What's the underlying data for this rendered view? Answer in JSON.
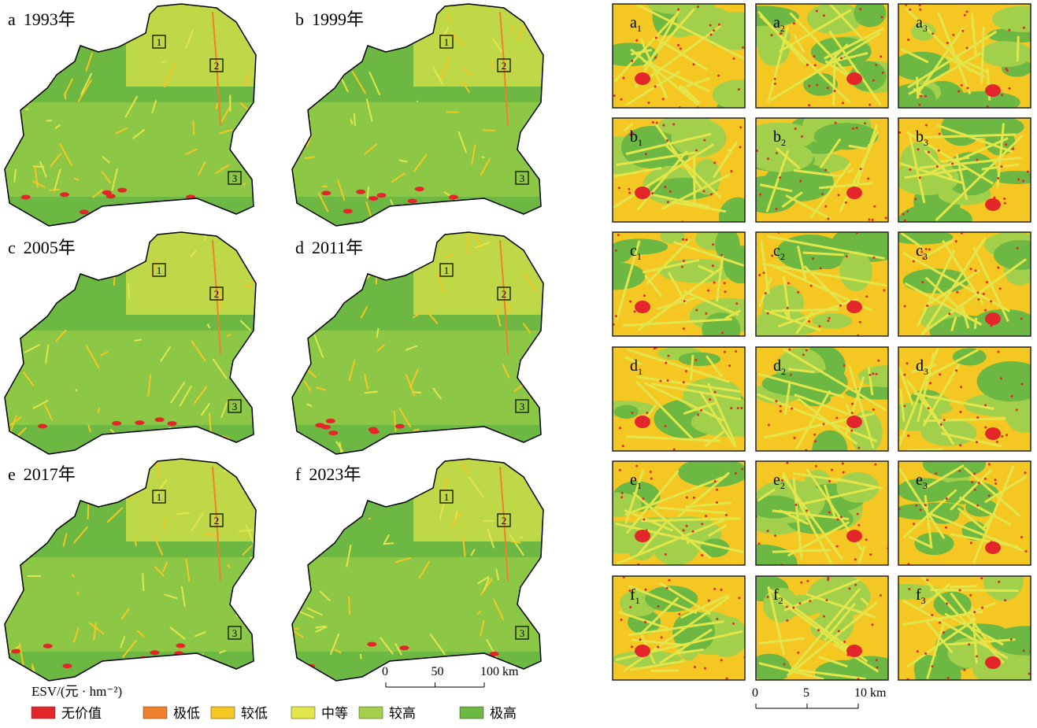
{
  "maps": [
    {
      "letter": "a",
      "year": "1993年"
    },
    {
      "letter": "b",
      "year": "1999年"
    },
    {
      "letter": "c",
      "year": "2005年"
    },
    {
      "letter": "d",
      "year": "2011年"
    },
    {
      "letter": "e",
      "year": "2017年"
    },
    {
      "letter": "f",
      "year": "2023年"
    }
  ],
  "box_labels": [
    "1",
    "2",
    "3"
  ],
  "scale_bars": [
    {
      "ticks": [
        "0",
        "50",
        "100 km"
      ]
    },
    {
      "ticks": [
        "0",
        "5",
        "10 km"
      ]
    }
  ],
  "legend": {
    "title": "ESV/(元 · hm⁻²)",
    "items": [
      {
        "label": "无价值",
        "color": "#e3262a"
      },
      {
        "label": "极低",
        "color": "#f0802c"
      },
      {
        "label": "较低",
        "color": "#f5c723"
      },
      {
        "label": "中等",
        "color": "#e3e64a"
      },
      {
        "label": "较高",
        "color": "#a3d04a"
      },
      {
        "label": "极高",
        "color": "#6db843"
      }
    ]
  },
  "insets": {
    "rows": [
      "a",
      "b",
      "c",
      "d",
      "e",
      "f"
    ],
    "subs": [
      "1",
      "2",
      "3"
    ]
  }
}
